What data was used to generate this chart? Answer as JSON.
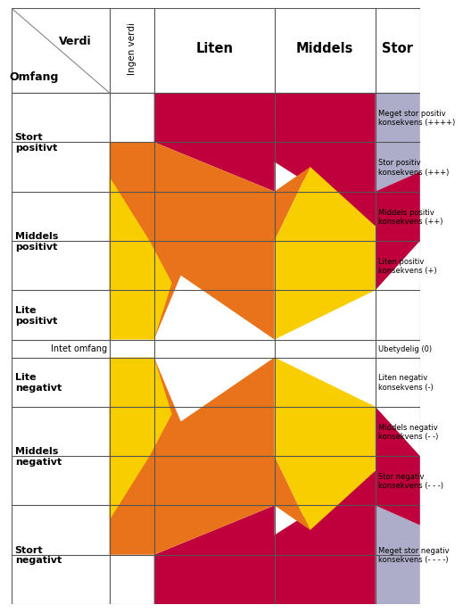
{
  "col_headers": [
    "Ingen verdi",
    "Liten",
    "Middels",
    "Stor"
  ],
  "row_headers_left": [
    "Stort\npositivt",
    "Middels\npositivt",
    "Lite\npositivt",
    "Lite\nnegativt",
    "Middels\nnegativt",
    "Stort\nnegativt"
  ],
  "intet_omfang_label": "Intet omfang",
  "consequence_labels": [
    [
      "Meget stor positiv\nkonsekvens (++++)",
      0
    ],
    [
      "Stor positiv\nkonsekvens (+++)",
      1
    ],
    [
      "Middels positiv\nkonsekvens (++)",
      2
    ],
    [
      "Liten positiv\nkonsekvens (+)",
      3
    ],
    [
      "Ubetydelig (0)",
      4
    ],
    [
      "Liten negativ\nkonsekvens (-)",
      5
    ],
    [
      "Middels negativ\nkonsekvens (- -)",
      6
    ],
    [
      "Stor negativ\nkonsekvens (- - -)",
      7
    ],
    [
      "Meget stor negativ\nkonsekvens (- - - -)",
      8
    ]
  ],
  "yellow": "#F9CE00",
  "orange": "#E8731A",
  "dark_red": "#C0003C",
  "purple": "#ADADC9",
  "white": "#FFFFFF",
  "grid_color": "#555555",
  "header_diag_color": "#888888"
}
